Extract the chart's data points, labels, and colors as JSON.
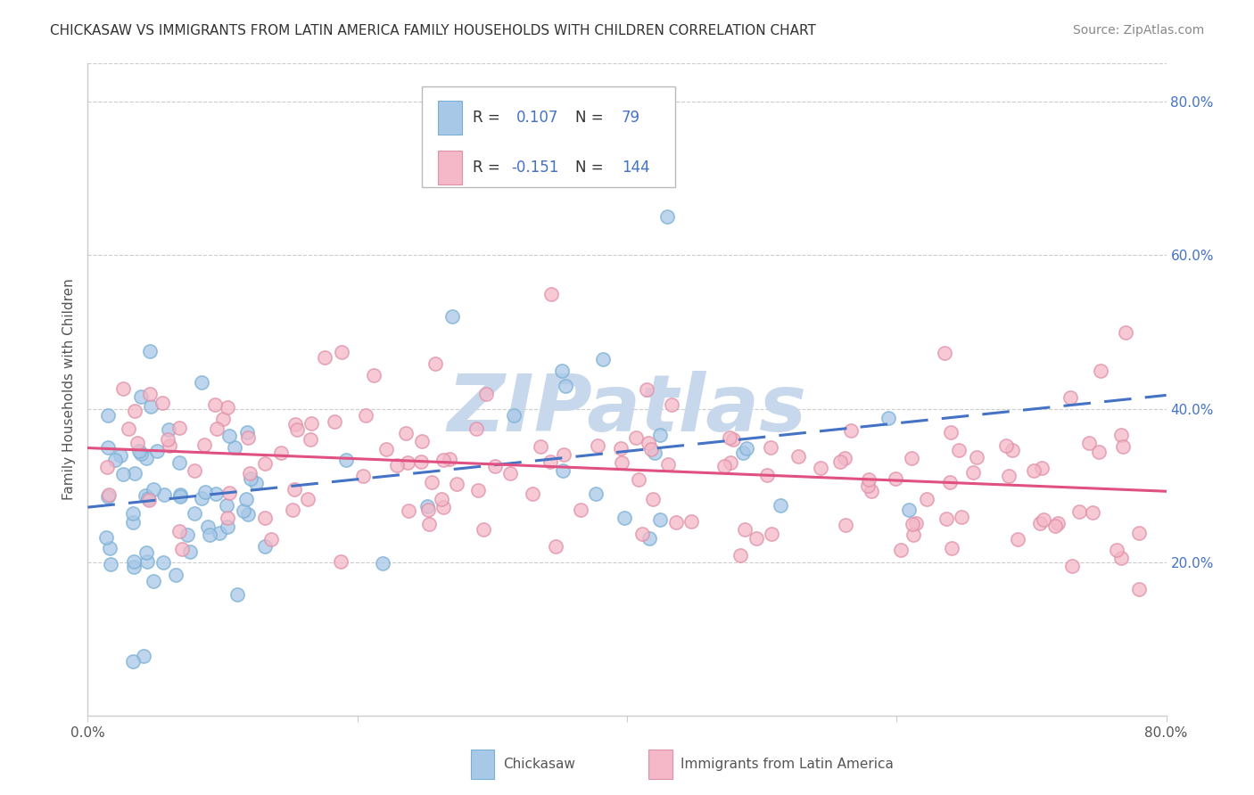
{
  "title": "CHICKASAW VS IMMIGRANTS FROM LATIN AMERICA FAMILY HOUSEHOLDS WITH CHILDREN CORRELATION CHART",
  "source": "Source: ZipAtlas.com",
  "ylabel": "Family Households with Children",
  "xlim": [
    0.0,
    0.8
  ],
  "ylim": [
    0.0,
    0.85
  ],
  "x_ticks": [
    0.0,
    0.2,
    0.4,
    0.6,
    0.8
  ],
  "x_tick_labels": [
    "0.0%",
    "",
    "",
    "",
    "80.0%"
  ],
  "y_tick_labels_right": [
    "20.0%",
    "40.0%",
    "60.0%",
    "80.0%"
  ],
  "y_ticks_right": [
    0.2,
    0.4,
    0.6,
    0.8
  ],
  "blue_scatter_color": "#a8c8e8",
  "blue_scatter_edge": "#7ab0d4",
  "pink_scatter_color": "#f4b8c8",
  "pink_scatter_edge": "#e090a8",
  "blue_line_color": "#4472c4",
  "pink_line_color": "#e05080",
  "grid_color": "#cccccc",
  "watermark_text": "ZIPatlas",
  "watermark_color": "#c8d8ec",
  "tick_label_color": "#555555",
  "right_tick_color": "#4472c4",
  "title_color": "#333333",
  "source_color": "#888888",
  "legend_r1_color": "#4472c4",
  "legend_r2_color": "#4472c4",
  "legend_label_color": "#333333",
  "bottom_label_color": "#555555"
}
